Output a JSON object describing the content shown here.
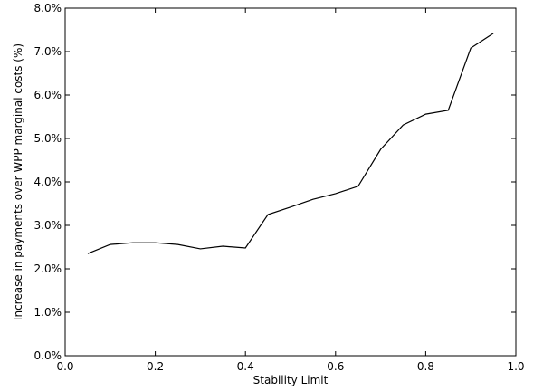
{
  "chart_data": {
    "type": "line",
    "x_label": "Stability Limit",
    "y_label": "Increase in payments over WPP marginal costs (%)",
    "x": [
      0.05,
      0.1,
      0.15,
      0.2,
      0.25,
      0.3,
      0.35,
      0.4,
      0.45,
      0.5,
      0.55,
      0.6,
      0.65,
      0.7,
      0.75,
      0.8,
      0.85,
      0.9,
      0.95
    ],
    "values": [
      2.35,
      2.56,
      2.6,
      2.6,
      2.56,
      2.46,
      2.52,
      2.48,
      3.25,
      3.42,
      3.6,
      3.73,
      3.9,
      4.75,
      5.31,
      5.56,
      5.65,
      7.08,
      7.42
    ],
    "color": "#000000",
    "xlim": [
      0,
      1
    ],
    "xticks": [
      {
        "value": 0,
        "label": "0.0"
      },
      0.2,
      0.4,
      0.6,
      0.8,
      {
        "value": 1,
        "label": "1.0"
      }
    ],
    "ylim": [
      0,
      8
    ],
    "yticks": [
      {
        "value": 0,
        "label": "0.0%"
      },
      {
        "value": 1,
        "label": "1.0%"
      },
      {
        "value": 2,
        "label": "2.0%"
      },
      {
        "value": 3,
        "label": "3.0%"
      },
      {
        "value": 4,
        "label": "4.0%"
      },
      {
        "value": 5,
        "label": "5.0%"
      },
      {
        "value": 6,
        "label": "6.0%"
      },
      {
        "value": 7,
        "label": "7.0%"
      },
      {
        "value": 8,
        "label": "8.0%"
      }
    ],
    "grid": false
  }
}
